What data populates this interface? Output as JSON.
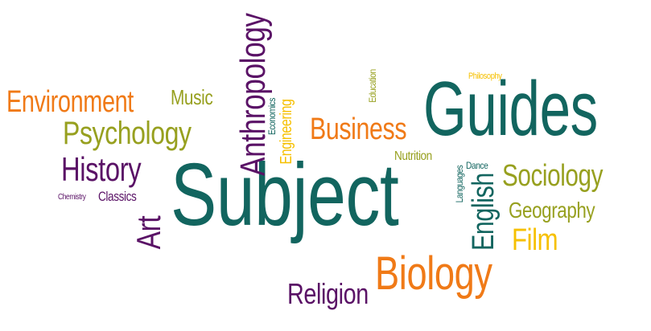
{
  "colors": {
    "teal": "#12655f",
    "purple": "#5a1266",
    "orange": "#f07a17",
    "olive": "#97a01f",
    "yellow": "#f6c000"
  },
  "words": {
    "subject": "Subject",
    "guides": "Guides",
    "biology": "Biology",
    "anthropology": "Anthropology",
    "environment": "Environment",
    "psychology": "Psychology",
    "history": "History",
    "business": "Business",
    "sociology": "Sociology",
    "english": "English",
    "geography": "Geography",
    "film": "Film",
    "religion": "Religion",
    "art": "Art",
    "music": "Music",
    "engineering": "Engineering",
    "economics": "Economics",
    "education": "Education",
    "philosophy": "Philosophy",
    "nutrition": "Nutrition",
    "classics": "Classics",
    "chemistry": "Chemistry",
    "languages": "Languages",
    "dance": "Dance"
  }
}
